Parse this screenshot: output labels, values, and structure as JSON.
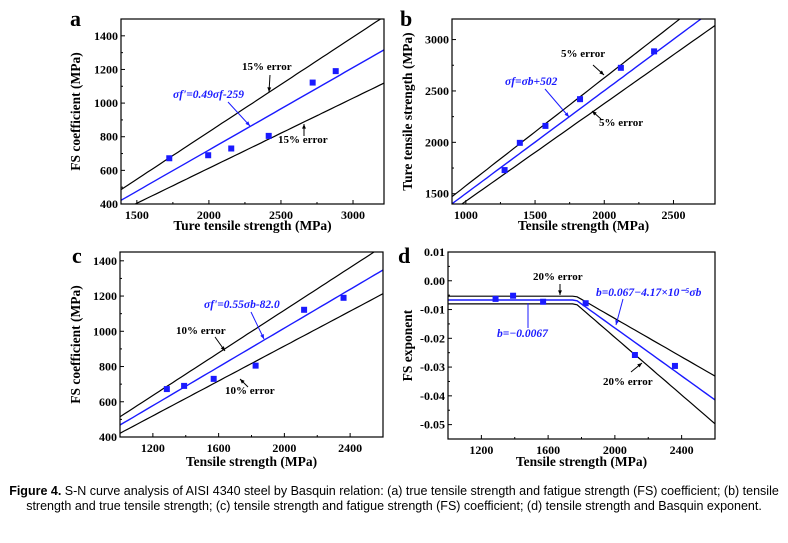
{
  "figure": {
    "caption_label": "Figure 4.",
    "caption_text": " S-N curve analysis of AISI 4340 steel by Basquin relation: (a) true tensile strength and fatigue strength (FS) coefficient; (b) tensile strength and true tensile strength; (c) tensile strength and fatigue strength (FS) coefficient; (d) tensile strength and Basquin exponent."
  },
  "colors": {
    "fit": "#1a1aff",
    "bound": "#000000",
    "marker": "#1a1aff",
    "annotation": "#1a1aff"
  },
  "chart_data": [
    {
      "panel": "a",
      "type": "scatter",
      "xlabel": "Ture tensile strength (MPa)",
      "ylabel": "FS coefficient (MPa)",
      "xlim": [
        1390,
        3215
      ],
      "ylim": [
        400,
        1500
      ],
      "xticks": [
        1500,
        2000,
        2500,
        3000
      ],
      "yticks": [
        400,
        600,
        800,
        1000,
        1200,
        1400
      ],
      "points": {
        "x": [
          1725,
          1995,
          2155,
          2415,
          2720,
          2880
        ],
        "y": [
          672,
          690,
          730,
          805,
          1122,
          1190
        ]
      },
      "fit": {
        "slope": 0.49,
        "intercept": -259,
        "label_html": "σ<tspan dy='3' font-size='8'>f</tspan><tspan dy='-9' font-size='8' dx='-4'>'</tspan><tspan dy='6'>=0.49σ</tspan><tspan dy='3' font-size='8'>f</tspan><tspan dy='-3'>-259</tspan>",
        "label": "σf'=0.49σf-259"
      },
      "bounds": {
        "factor": 0.15,
        "upper_label": "15% error",
        "lower_label": "15% error"
      }
    },
    {
      "panel": "b",
      "type": "scatter",
      "xlabel": "Tensile strength (MPa)",
      "ylabel": "Ture tensile strength (MPa)",
      "xlim": [
        900,
        2800
      ],
      "ylim": [
        1400,
        3200
      ],
      "xticks": [
        1000,
        1500,
        2000,
        2500
      ],
      "yticks": [
        1500,
        2000,
        2500,
        3000
      ],
      "points": {
        "x": [
          1280,
          1390,
          1575,
          1825,
          2120,
          2360
        ],
        "y": [
          1730,
          1995,
          2160,
          2420,
          2725,
          2885
        ]
      },
      "fit": {
        "slope": 1.0,
        "intercept": 502,
        "label": "σf=σb+502"
      },
      "bounds": {
        "factor": 0.05,
        "upper_label": "5% error",
        "lower_label": "5% error"
      }
    },
    {
      "panel": "c",
      "type": "scatter",
      "xlabel": "Tensile strength (MPa)",
      "ylabel": "FS coefficient (MPa)",
      "xlim": [
        1000,
        2600
      ],
      "ylim": [
        400,
        1450
      ],
      "xticks": [
        1200,
        1600,
        2000,
        2400
      ],
      "yticks": [
        400,
        600,
        800,
        1000,
        1200,
        1400
      ],
      "points": {
        "x": [
          1285,
          1390,
          1570,
          1825,
          2120,
          2360
        ],
        "y": [
          672,
          690,
          730,
          805,
          1122,
          1190
        ]
      },
      "fit": {
        "slope": 0.55,
        "intercept": -82.0,
        "label": "σf'=0.55σb-82.0"
      },
      "bounds": {
        "factor": 0.1,
        "upper_label": "10% error",
        "lower_label": "10% error"
      }
    },
    {
      "panel": "d",
      "type": "scatter",
      "xlabel": "Tensile strength (MPa)",
      "ylabel": "FS exponent",
      "xlim": [
        1000,
        2600
      ],
      "ylim": [
        -0.055,
        0.01
      ],
      "xticks": [
        1200,
        1600,
        2000,
        2400
      ],
      "yticks": [
        0.01,
        0.0,
        -0.01,
        -0.02,
        -0.03,
        -0.04,
        -0.05
      ],
      "ytick_labels": [
        "0.01",
        "0.00",
        "-0.01",
        "-0.02",
        "-0.03",
        "-0.04",
        "-0.05"
      ],
      "points": {
        "x": [
          1285,
          1390,
          1570,
          1825,
          2120,
          2360
        ],
        "y": [
          -0.0063,
          -0.0052,
          -0.0073,
          -0.0078,
          -0.0258,
          -0.0296
        ]
      },
      "fit": {
        "type": "piecewise",
        "flat_value": -0.0067,
        "slope": -4.17e-05,
        "intercept": 0.067,
        "flat_label": "b=−0.0067",
        "slope_label": "b=0.067−4.17×10⁻⁵σb"
      },
      "bounds": {
        "factor": 0.2,
        "upper_label": "20% error",
        "lower_label": "20% error"
      }
    }
  ]
}
